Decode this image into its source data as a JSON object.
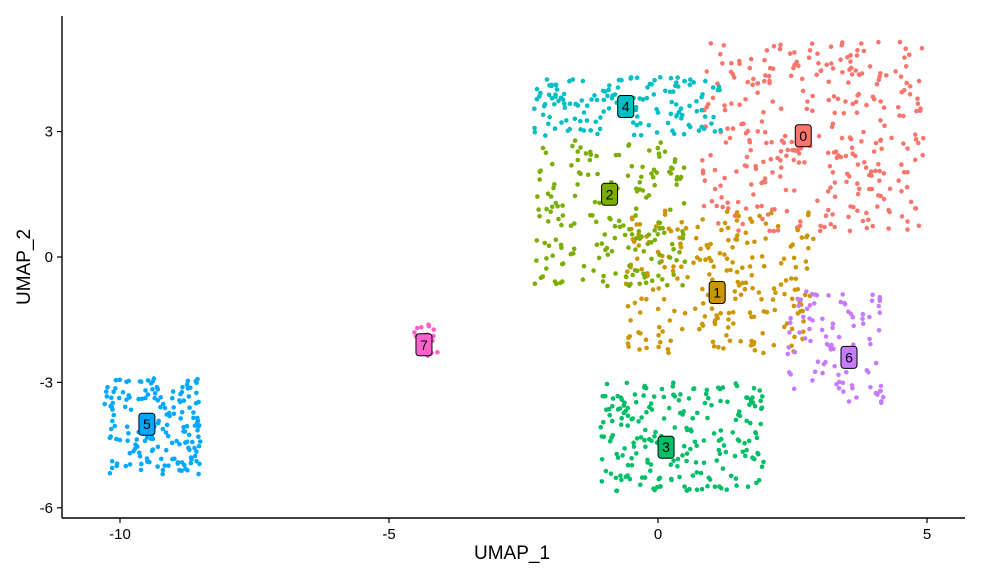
{
  "chart_data": {
    "type": "scatter",
    "title": "",
    "xlabel": "UMAP_1",
    "ylabel": "UMAP_2",
    "xlim": [
      -11.1,
      5.7
    ],
    "ylim": [
      -6.2,
      5.3
    ],
    "x_ticks": [
      -10,
      -5,
      0,
      5
    ],
    "x_tick_labels": [
      "-10",
      "-5",
      "0",
      "5"
    ],
    "y_ticks": [
      -6,
      -3,
      0,
      3
    ],
    "y_tick_labels": [
      "-6",
      "-3",
      "0",
      "3"
    ],
    "grid": false,
    "legend": "none",
    "point_size_note": "small filled circles",
    "clusters": [
      {
        "label": "0",
        "color": "#F8766D",
        "label_pos": [
          2.7,
          2.9
        ],
        "n_points": 330,
        "region": {
          "x": [
            0.8,
            4.95
          ],
          "y": [
            0.6,
            5.15
          ]
        }
      },
      {
        "label": "1",
        "color": "#CD9600",
        "label_pos": [
          1.1,
          -0.85
        ],
        "n_points": 230,
        "region": {
          "x": [
            -0.6,
            2.9
          ],
          "y": [
            -2.3,
            1.2
          ]
        }
      },
      {
        "label": "2",
        "color": "#7CAE00",
        "label_pos": [
          -0.9,
          1.5
        ],
        "n_points": 190,
        "region": {
          "x": [
            -2.3,
            0.5
          ],
          "y": [
            -0.7,
            2.8
          ]
        }
      },
      {
        "label": "3",
        "color": "#00BE67",
        "label_pos": [
          0.15,
          -4.55
        ],
        "n_points": 220,
        "region": {
          "x": [
            -1.1,
            2.0
          ],
          "y": [
            -5.6,
            -3.0
          ]
        }
      },
      {
        "label": "4",
        "color": "#00BFC4",
        "label_pos": [
          -0.6,
          3.6
        ],
        "n_points": 150,
        "region": {
          "x": [
            -2.3,
            1.2
          ],
          "y": [
            2.9,
            4.3
          ]
        }
      },
      {
        "label": "5",
        "color": "#00A9FF",
        "label_pos": [
          -9.5,
          -4.0
        ],
        "n_points": 170,
        "region": {
          "x": [
            -10.3,
            -8.5
          ],
          "y": [
            -5.2,
            -2.9
          ]
        }
      },
      {
        "label": "6",
        "color": "#C77CFF",
        "label_pos": [
          3.55,
          -2.4
        ],
        "n_points": 95,
        "region": {
          "x": [
            2.4,
            4.2
          ],
          "y": [
            -3.5,
            -0.8
          ]
        }
      },
      {
        "label": "7",
        "color": "#FF61CC",
        "label_pos": [
          -4.35,
          -2.1
        ],
        "n_points": 22,
        "region": {
          "x": [
            -4.6,
            -4.1
          ],
          "y": [
            -2.4,
            -1.6
          ]
        }
      }
    ]
  }
}
